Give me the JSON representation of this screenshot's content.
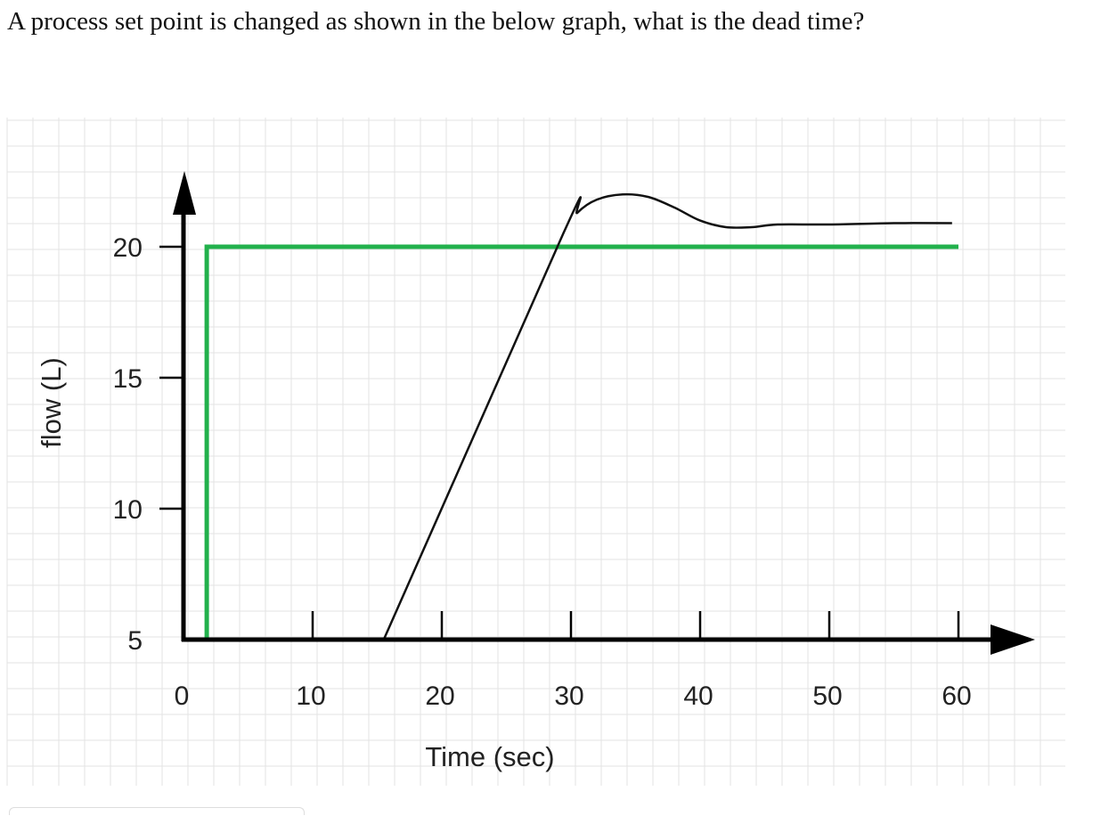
{
  "question": {
    "text": "A process set point is changed as shown in the below graph, what is the dead time?"
  },
  "chart_data": {
    "type": "line",
    "xlabel": "Time (sec)",
    "ylabel": "flow (L)",
    "xlim": [
      0,
      66
    ],
    "ylim": [
      5,
      22.5
    ],
    "x_ticks": [
      0,
      10,
      20,
      30,
      40,
      50,
      60
    ],
    "x_tick_labels": [
      "0",
      "10",
      "20",
      "30",
      "40",
      "50",
      "60"
    ],
    "y_ticks": [
      5,
      10,
      15,
      20
    ],
    "y_tick_labels": [
      "5",
      "10",
      "15",
      "20"
    ],
    "grid": true,
    "colors": {
      "setpoint": "#22b14c",
      "response": "#111111",
      "axes": "#000000",
      "grid": "#e3e3e3"
    },
    "series": [
      {
        "x": [
          0,
          1.8,
          1.8,
          60
        ],
        "y": [
          5,
          5,
          20,
          20
        ]
      },
      {
        "x": [
          15.5,
          29.4,
          30.5,
          32,
          34,
          36,
          38,
          40,
          42,
          44,
          46,
          50,
          55,
          59.5
        ],
        "y": [
          5,
          20.5,
          21.3,
          21.8,
          22.0,
          21.9,
          21.5,
          21.0,
          20.75,
          20.75,
          20.85,
          20.85,
          20.9,
          20.9
        ]
      }
    ]
  }
}
